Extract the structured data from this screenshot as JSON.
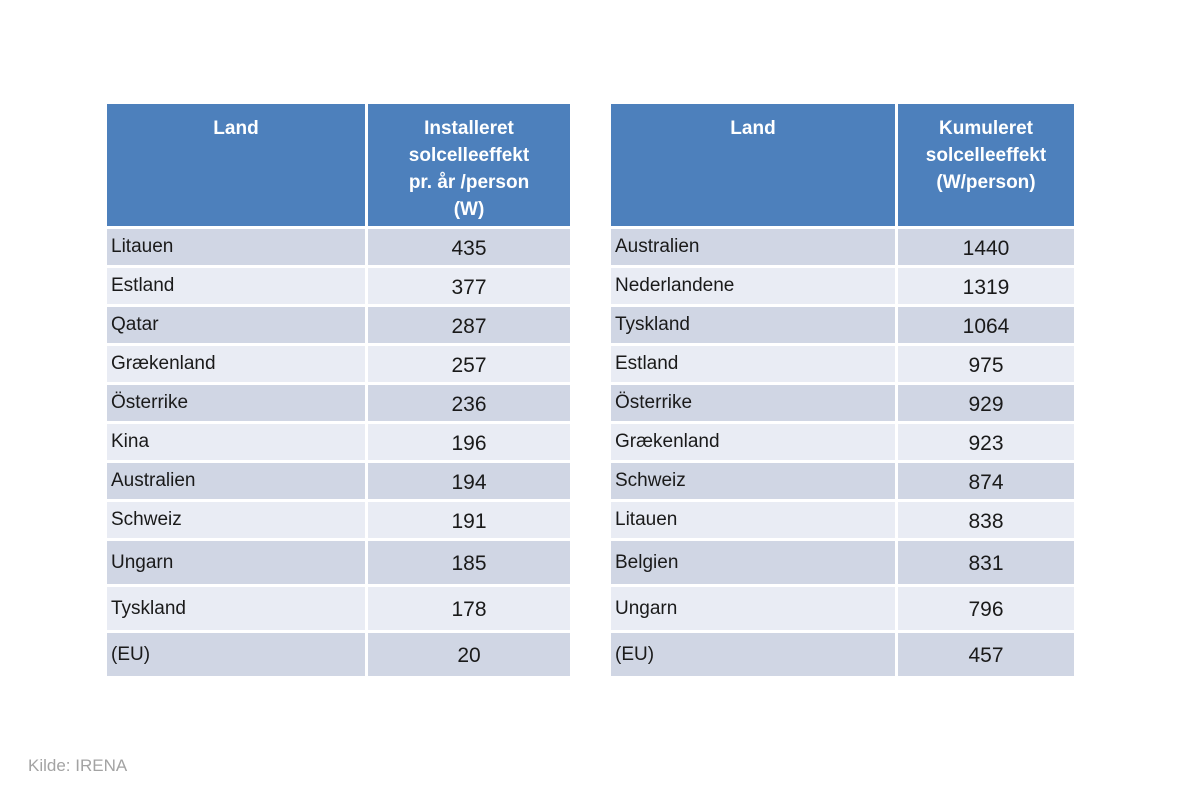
{
  "colors": {
    "header_bg": "#4d80bc",
    "header_text": "#ffffff",
    "row_dark": "#d0d6e4",
    "row_light": "#e9ecf4",
    "cell_text": "#1a1a1a",
    "source_text": "#a3a3a3",
    "page_bg": "#ffffff"
  },
  "source_note": "Kilde: IRENA",
  "tables": [
    {
      "id": "installed-per-year-table",
      "columns": [
        "Land",
        "Installeret\nsolcelleeffekt\npr. år /person\n(W)"
      ],
      "rows": [
        [
          "Litauen",
          "435"
        ],
        [
          "Estland",
          "377"
        ],
        [
          "Qatar",
          "287"
        ],
        [
          "Grækenland",
          "257"
        ],
        [
          "Österrike",
          "236"
        ],
        [
          "Kina",
          "196"
        ],
        [
          "Australien",
          "194"
        ],
        [
          "Schweiz",
          "191"
        ],
        [
          "Ungarn",
          "185"
        ],
        [
          "Tyskland",
          "178"
        ],
        [
          "(EU)",
          "20"
        ]
      ]
    },
    {
      "id": "cumulative-table",
      "columns": [
        "Land",
        "Kumuleret\nsolcelleeffekt\n(W/person)"
      ],
      "rows": [
        [
          "Australien",
          "1440"
        ],
        [
          "Nederlandene",
          "1319"
        ],
        [
          "Tyskland",
          "1064"
        ],
        [
          "Estland",
          "975"
        ],
        [
          "Österrike",
          "929"
        ],
        [
          "Grækenland",
          "923"
        ],
        [
          "Schweiz",
          "874"
        ],
        [
          "Litauen",
          "838"
        ],
        [
          "Belgien",
          "831"
        ],
        [
          "Ungarn",
          "796"
        ],
        [
          "(EU)",
          "457"
        ]
      ]
    }
  ]
}
